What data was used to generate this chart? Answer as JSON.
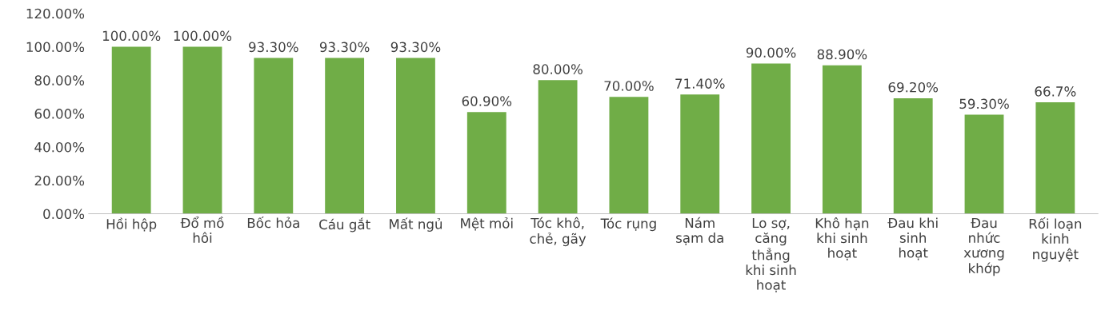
{
  "chart_data": {
    "type": "bar",
    "categories": [
      "Hồi hộp",
      "Đổ mồ\nhôi",
      "Bốc hỏa",
      "Cáu gắt",
      "Mất ngủ",
      "Mệt mỏi",
      "Tóc khô,\nchẻ, gãy",
      "Tóc rụng",
      "Nám\nsạm da",
      "Lo sợ,\ncăng\nthẳng\nkhi sinh\nhoạt",
      "Khô hạn\nkhi sinh\nhoạt",
      "Đau khi\nsinh\nhoạt",
      "Đau\nnhức\nxương\nkhớp",
      "Rối loạn\nkinh\nnguyệt"
    ],
    "values": [
      100,
      100,
      93.3,
      93.3,
      93.3,
      60.9,
      80,
      70,
      71.4,
      90,
      88.9,
      69.2,
      59.3,
      66.7
    ],
    "value_labels": [
      "100.00%",
      "100.00%",
      "93.30%",
      "93.30%",
      "93.30%",
      "60.90%",
      "80.00%",
      "70.00%",
      "71.40%",
      "90.00%",
      "88.90%",
      "69.20%",
      "59.30%",
      "66.7%"
    ],
    "color": "#70ad47",
    "ylim": [
      0,
      120
    ],
    "yticks": [
      {
        "value": 0,
        "label": "0.00%"
      },
      {
        "value": 20,
        "label": "20.00%"
      },
      {
        "value": 40,
        "label": "40.00%"
      },
      {
        "value": 60,
        "label": "60.00%"
      },
      {
        "value": 80,
        "label": "80.00%"
      },
      {
        "value": 100,
        "label": "100.00%"
      },
      {
        "value": 120,
        "label": "120.00%"
      }
    ],
    "grid": false
  }
}
